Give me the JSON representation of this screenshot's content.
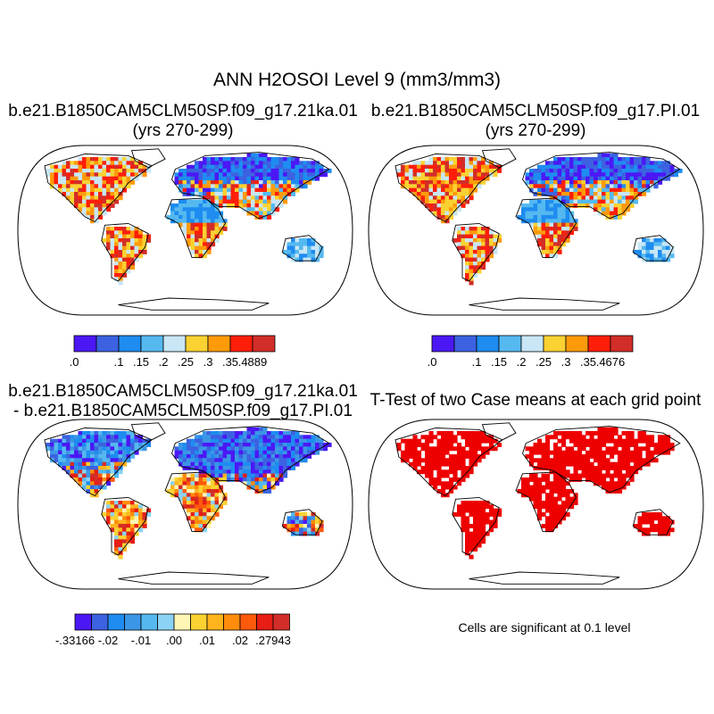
{
  "title": "ANN H2OSOI Level 9 (mm3/mm3)",
  "panels": {
    "top_left": {
      "title_line1": "b.e21.B1850CAM5CLM50SP.f09_g17.21ka.01",
      "title_line2": "(yrs 270-299)",
      "colorbar": {
        "colors": [
          "#4b18f5",
          "#3c62e1",
          "#1e8cf0",
          "#55b9f0",
          "#c8e6f5",
          "#fad232",
          "#ff9b0a",
          "#ff1e0a",
          "#d22d28"
        ],
        "labels": [
          ".0",
          "",
          ".1",
          ".15",
          ".2",
          ".25",
          ".3",
          ".35",
          ".4889"
        ]
      }
    },
    "top_right": {
      "title_line1": "b.e21.B1850CAM5CLM50SP.f09_g17.PI.01",
      "title_line2": "(yrs 270-299)",
      "colorbar": {
        "colors": [
          "#4b18f5",
          "#3c62e1",
          "#1e8cf0",
          "#55b9f0",
          "#c8e6f5",
          "#fad232",
          "#ff9b0a",
          "#ff1e0a",
          "#d22d28"
        ],
        "labels": [
          ".0",
          "",
          ".1",
          ".15",
          ".2",
          ".25",
          ".3",
          ".35",
          ".4676"
        ]
      }
    },
    "bottom_left": {
      "title_line1": "b.e21.B1850CAM5CLM50SP.f09_g17.21ka.01",
      "title_line2": "- b.e21.B1850CAM5CLM50SP.f09_g17.PI.01",
      "colorbar": {
        "colors": [
          "#4b18f5",
          "#3c62e1",
          "#1e8cf0",
          "#3c96e6",
          "#55b9f0",
          "#8cd2f5",
          "#fff5b4",
          "#fad232",
          "#ffb41e",
          "#ff8c0a",
          "#ff5a0a",
          "#e61e14",
          "#d22d28"
        ],
        "labels": [
          "-.33166",
          "",
          "-.02",
          "",
          "-.01",
          "",
          ".00",
          "",
          ".01",
          "",
          ".02",
          "",
          ".27943"
        ]
      }
    },
    "bottom_right": {
      "title": "T-Test of two Case means at each grid point",
      "note": "Cells are significant at 0.1 level",
      "significant_color": "#ee0000"
    }
  }
}
